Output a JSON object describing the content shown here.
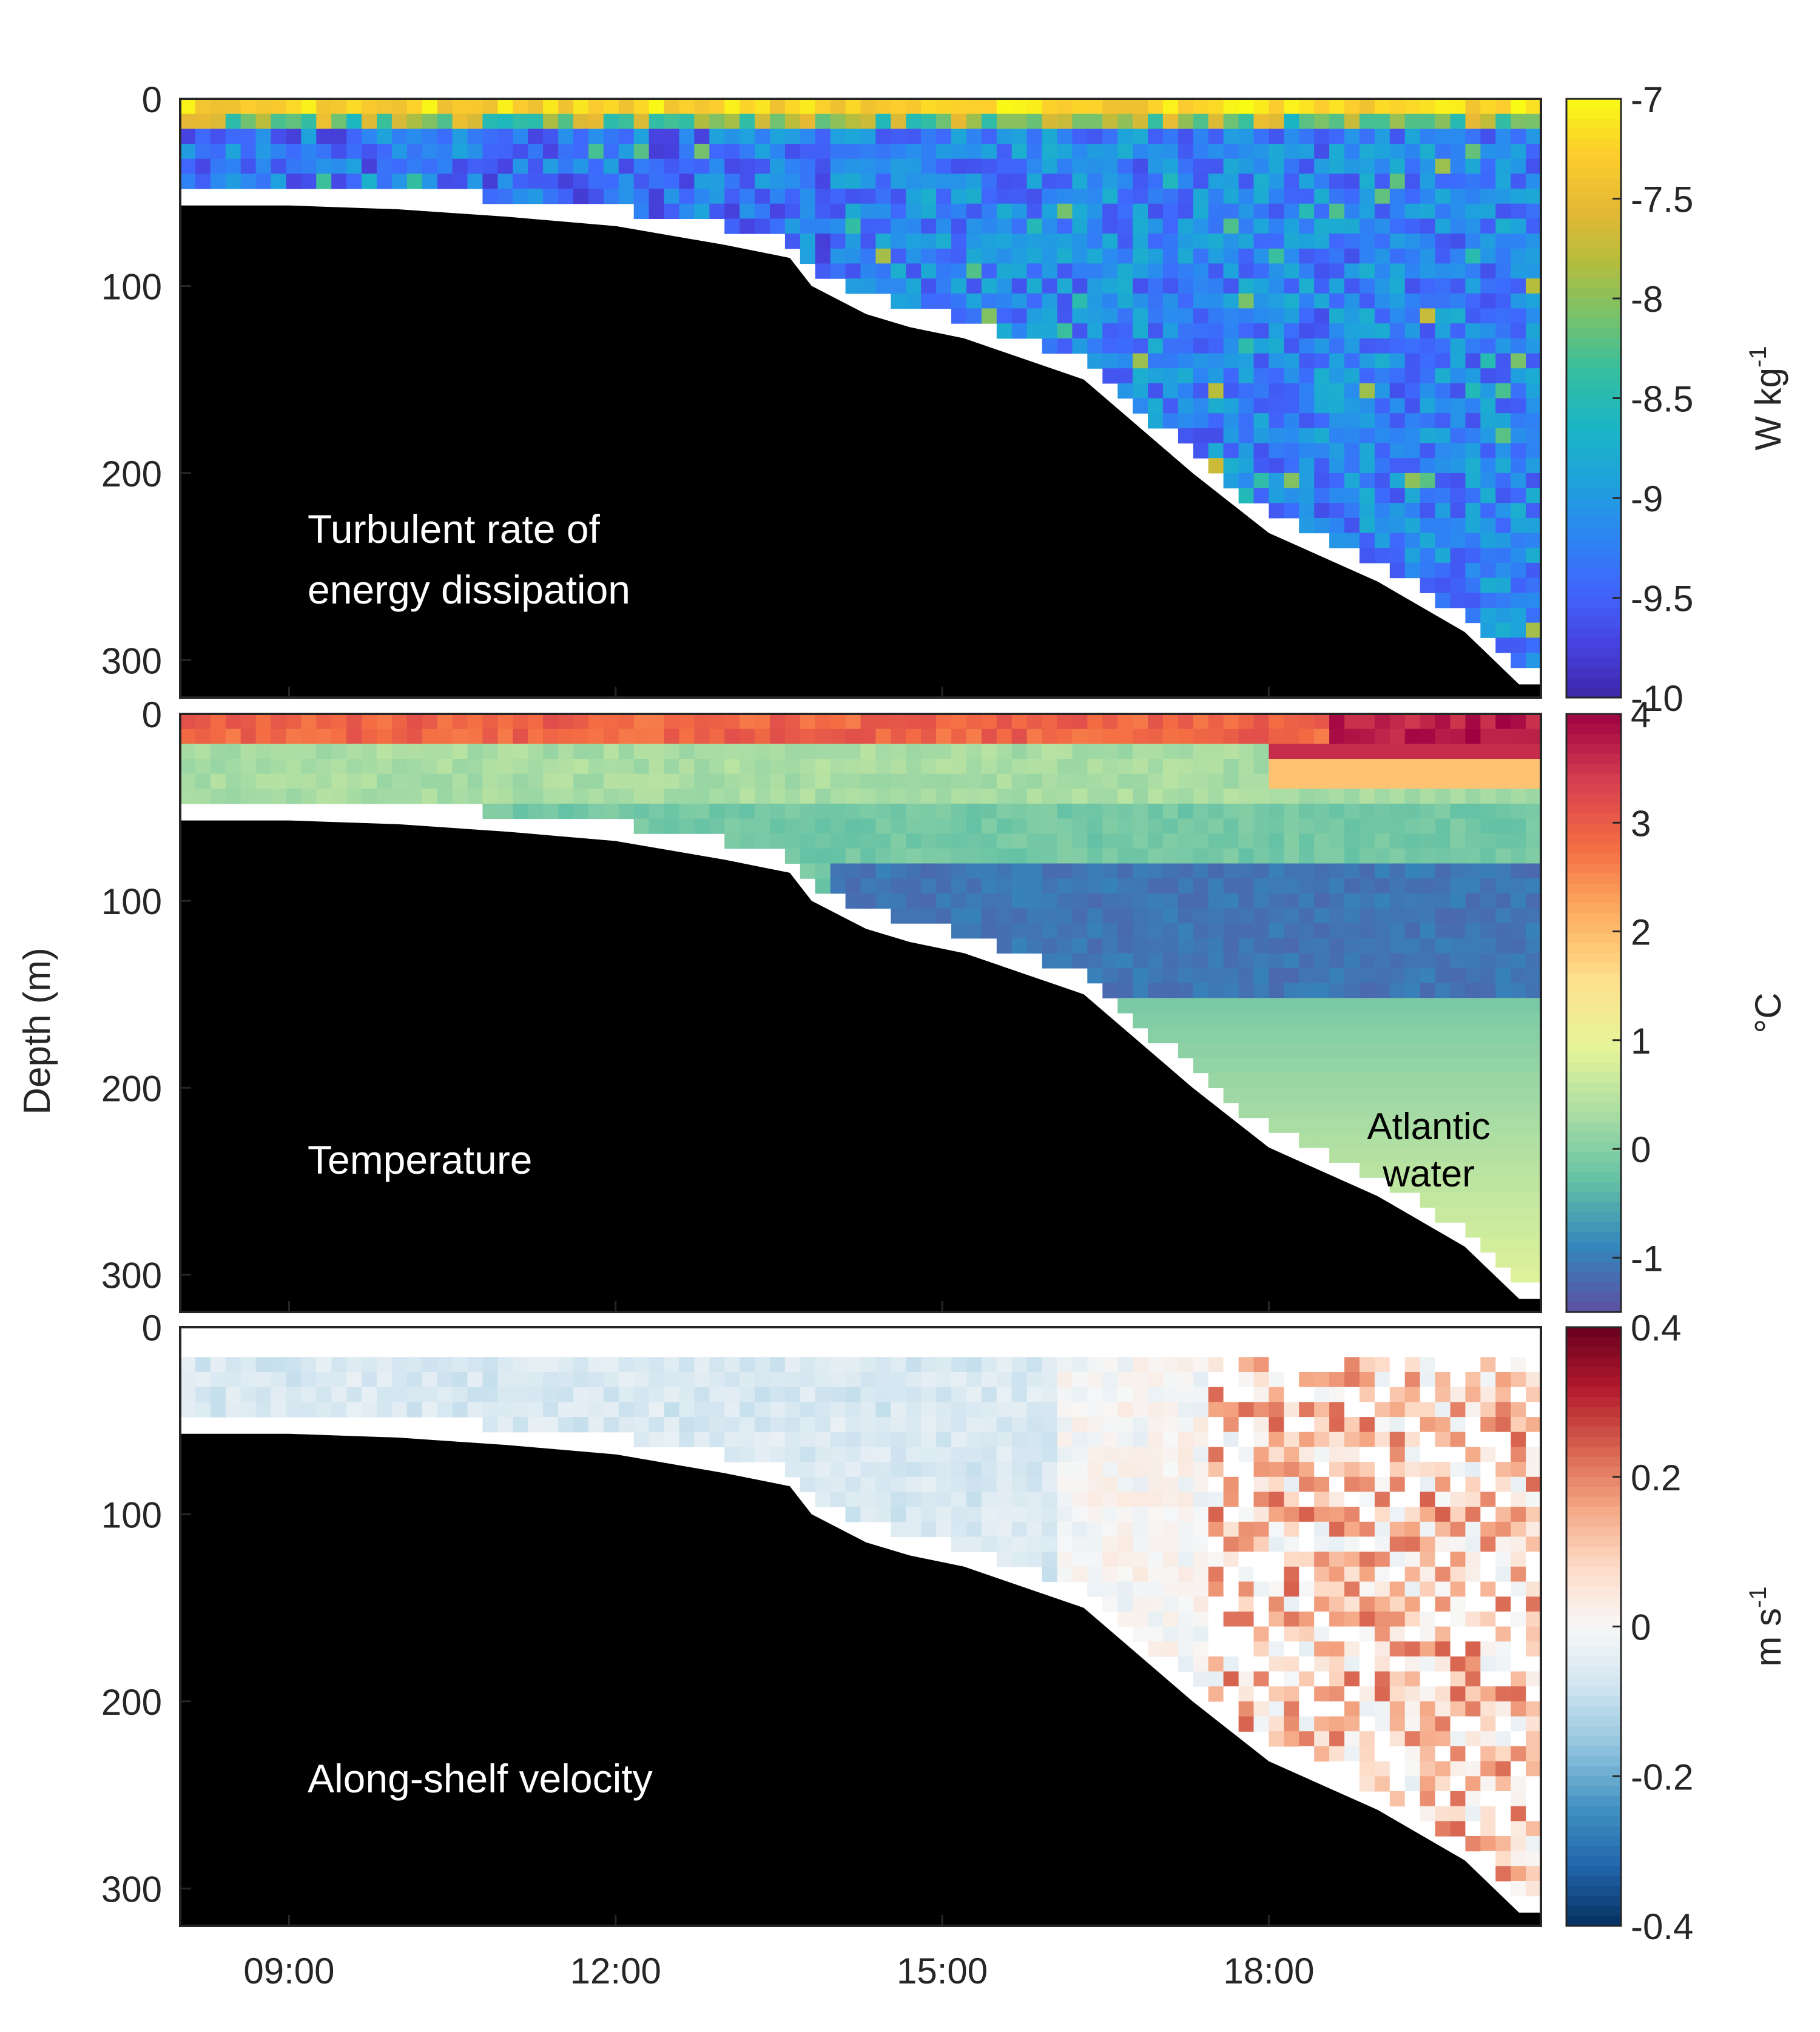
{
  "figure": {
    "ylabel": "Depth (m)",
    "time_ticks": [
      "09:00",
      "12:00",
      "15:00",
      "18:00"
    ],
    "time_tick_hours": [
      9,
      12,
      15,
      18
    ],
    "time_range_hours": [
      8,
      20.5
    ],
    "depth_ticks": [
      0,
      100,
      200,
      300
    ],
    "depth_range": [
      0,
      320
    ]
  },
  "chart_data": [
    {
      "type": "heatmap",
      "title": "Turbulent rate of energy dissipation",
      "panel_label": [
        "Turbulent rate of",
        "energy dissipation"
      ],
      "colormap": "parula",
      "colorbar": {
        "label": "W kg",
        "label_superscript": "-1",
        "ticks": [
          "-7",
          "-7.5",
          "-8",
          "-8.5",
          "-9",
          "-9.5",
          "-10"
        ],
        "tick_values": [
          -7,
          -7.5,
          -8,
          -8.5,
          -9,
          -9.5,
          -10
        ],
        "range": [
          -10,
          -7
        ]
      },
      "colors": [
        "#3e26a8",
        "#4743e1",
        "#3f67fc",
        "#2c87f2",
        "#1ea3db",
        "#1ab6c4",
        "#36bf9f",
        "#77c26b",
        "#b5bd3c",
        "#e7b934",
        "#fcce2d",
        "#f9fb15"
      ],
      "bathymetry_depth_m": [
        [
          8,
          57
        ],
        [
          9,
          57
        ],
        [
          10,
          59
        ],
        [
          11,
          63
        ],
        [
          12,
          68
        ],
        [
          13,
          78
        ],
        [
          13.6,
          85
        ],
        [
          13.8,
          100
        ],
        [
          14.3,
          115
        ],
        [
          14.7,
          122
        ],
        [
          15.2,
          128
        ],
        [
          16.3,
          150
        ],
        [
          16.8,
          175
        ],
        [
          17.3,
          200
        ],
        [
          18,
          232
        ],
        [
          19,
          258
        ],
        [
          19.8,
          285
        ],
        [
          20.3,
          313
        ],
        [
          20.5,
          313
        ]
      ]
    },
    {
      "type": "heatmap",
      "title": "Temperature",
      "panel_label": [
        "Temperature"
      ],
      "annotation": [
        "Atlantic",
        "water"
      ],
      "colormap": "spectral",
      "colorbar": {
        "label": "°C",
        "label_superscript": "",
        "ticks": [
          "4",
          "3",
          "2",
          "1",
          "0",
          "-1"
        ],
        "tick_values": [
          4,
          3,
          2,
          1,
          0,
          -1
        ],
        "range": [
          -1.5,
          4
        ]
      },
      "colors": [
        "#5e4fa2",
        "#3288bd",
        "#66c2a5",
        "#abdda4",
        "#e6f598",
        "#fee08b",
        "#fdae61",
        "#f46d43",
        "#d53e4f",
        "#9e0142"
      ],
      "bathymetry_depth_m": [
        [
          8,
          57
        ],
        [
          9,
          57
        ],
        [
          10,
          59
        ],
        [
          11,
          63
        ],
        [
          12,
          68
        ],
        [
          13,
          78
        ],
        [
          13.6,
          85
        ],
        [
          13.8,
          100
        ],
        [
          14.3,
          115
        ],
        [
          14.7,
          122
        ],
        [
          15.2,
          128
        ],
        [
          16.3,
          150
        ],
        [
          16.8,
          175
        ],
        [
          17.3,
          200
        ],
        [
          18,
          232
        ],
        [
          19,
          258
        ],
        [
          19.8,
          285
        ],
        [
          20.3,
          313
        ],
        [
          20.5,
          313
        ]
      ]
    },
    {
      "type": "heatmap",
      "title": "Along-shelf velocity",
      "panel_label": [
        "Along-shelf velocity"
      ],
      "colormap": "diverging red-blue",
      "colorbar": {
        "label": "m s",
        "label_superscript": "-1",
        "ticks": [
          "0.4",
          "0.2",
          "0",
          "-0.2",
          "-0.4"
        ],
        "tick_values": [
          0.4,
          0.2,
          0,
          -0.2,
          -0.4
        ],
        "range": [
          -0.4,
          0.4
        ]
      },
      "colors": [
        "#053061",
        "#2166ac",
        "#4393c3",
        "#92c5de",
        "#d1e5f0",
        "#f7f7f7",
        "#fddbc7",
        "#f4a582",
        "#d6604d",
        "#b2182b",
        "#67001f"
      ],
      "bathymetry_depth_m": [
        [
          8,
          57
        ],
        [
          9,
          57
        ],
        [
          10,
          59
        ],
        [
          11,
          63
        ],
        [
          12,
          68
        ],
        [
          13,
          78
        ],
        [
          13.6,
          85
        ],
        [
          13.8,
          100
        ],
        [
          14.3,
          115
        ],
        [
          14.7,
          122
        ],
        [
          15.2,
          128
        ],
        [
          16.3,
          150
        ],
        [
          16.8,
          175
        ],
        [
          17.3,
          200
        ],
        [
          18,
          232
        ],
        [
          19,
          258
        ],
        [
          19.8,
          285
        ],
        [
          20.3,
          313
        ],
        [
          20.5,
          313
        ]
      ]
    }
  ]
}
